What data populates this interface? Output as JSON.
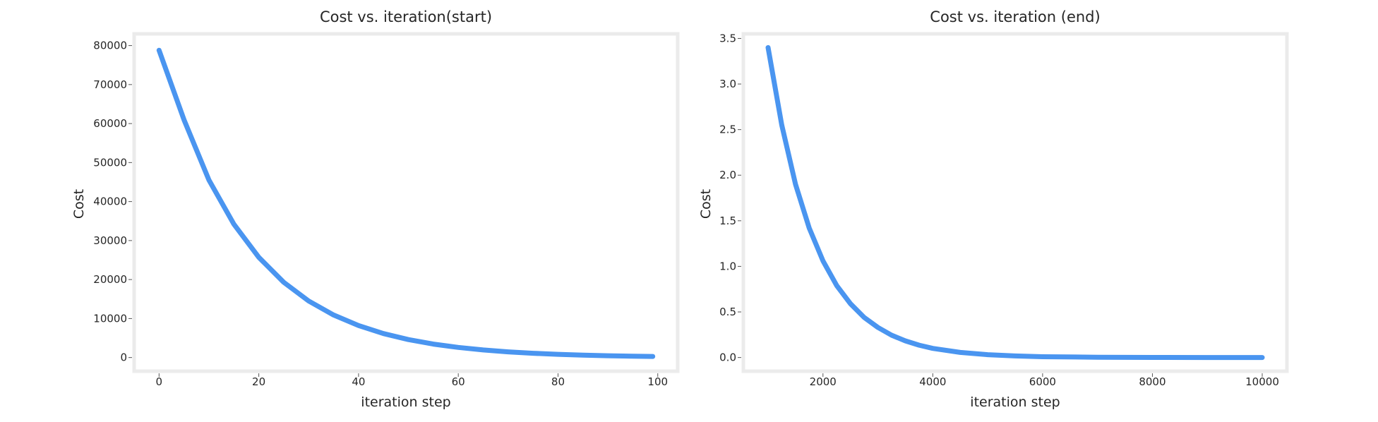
{
  "colors": {
    "line": "#4a95f0",
    "frame": "#ebebeb",
    "text": "#262626"
  },
  "chart_data": [
    {
      "type": "line",
      "title": "Cost vs. iteration(start)",
      "xlabel": "iteration step",
      "ylabel": "Cost",
      "xlim": [
        -5,
        104
      ],
      "ylim": [
        -3500,
        83000
      ],
      "xticks": [
        0,
        20,
        40,
        60,
        80,
        100
      ],
      "xtick_labels": [
        "0",
        "20",
        "40",
        "60",
        "80",
        "100"
      ],
      "yticks": [
        0,
        10000,
        20000,
        30000,
        40000,
        50000,
        60000,
        70000,
        80000
      ],
      "ytick_labels": [
        "0",
        "10000",
        "20000",
        "30000",
        "40000",
        "50000",
        "60000",
        "70000",
        "80000"
      ],
      "grid": false,
      "series": [
        {
          "name": "cost",
          "x": [
            0,
            5,
            10,
            15,
            20,
            25,
            30,
            35,
            40,
            45,
            50,
            55,
            60,
            65,
            70,
            75,
            80,
            85,
            90,
            95,
            99
          ],
          "y": [
            78800,
            61000,
            45500,
            34200,
            25700,
            19300,
            14500,
            10900,
            8200,
            6150,
            4600,
            3450,
            2600,
            1950,
            1450,
            1100,
            820,
            620,
            460,
            350,
            280
          ]
        }
      ]
    },
    {
      "type": "line",
      "title": "Cost vs. iteration (end)",
      "xlabel": "iteration step",
      "ylabel": "Cost",
      "xlim": [
        550,
        10450
      ],
      "ylim": [
        -0.15,
        3.55
      ],
      "xticks": [
        2000,
        4000,
        6000,
        8000,
        10000
      ],
      "xtick_labels": [
        "2000",
        "4000",
        "6000",
        "8000",
        "10000"
      ],
      "yticks": [
        0.0,
        0.5,
        1.0,
        1.5,
        2.0,
        2.5,
        3.0,
        3.5
      ],
      "ytick_labels": [
        "0.0",
        "0.5",
        "1.0",
        "1.5",
        "2.0",
        "2.5",
        "3.0",
        "3.5"
      ],
      "grid": false,
      "series": [
        {
          "name": "cost",
          "x": [
            1000,
            1250,
            1500,
            1750,
            2000,
            2250,
            2500,
            2750,
            3000,
            3250,
            3500,
            3750,
            4000,
            4500,
            5000,
            5500,
            6000,
            7000,
            8000,
            9000,
            10000
          ],
          "y": [
            3.4,
            2.55,
            1.9,
            1.42,
            1.06,
            0.79,
            0.59,
            0.44,
            0.33,
            0.245,
            0.183,
            0.136,
            0.1,
            0.056,
            0.031,
            0.017,
            0.009,
            0.003,
            0.001,
            0.0004,
            0.0002
          ]
        }
      ]
    }
  ]
}
